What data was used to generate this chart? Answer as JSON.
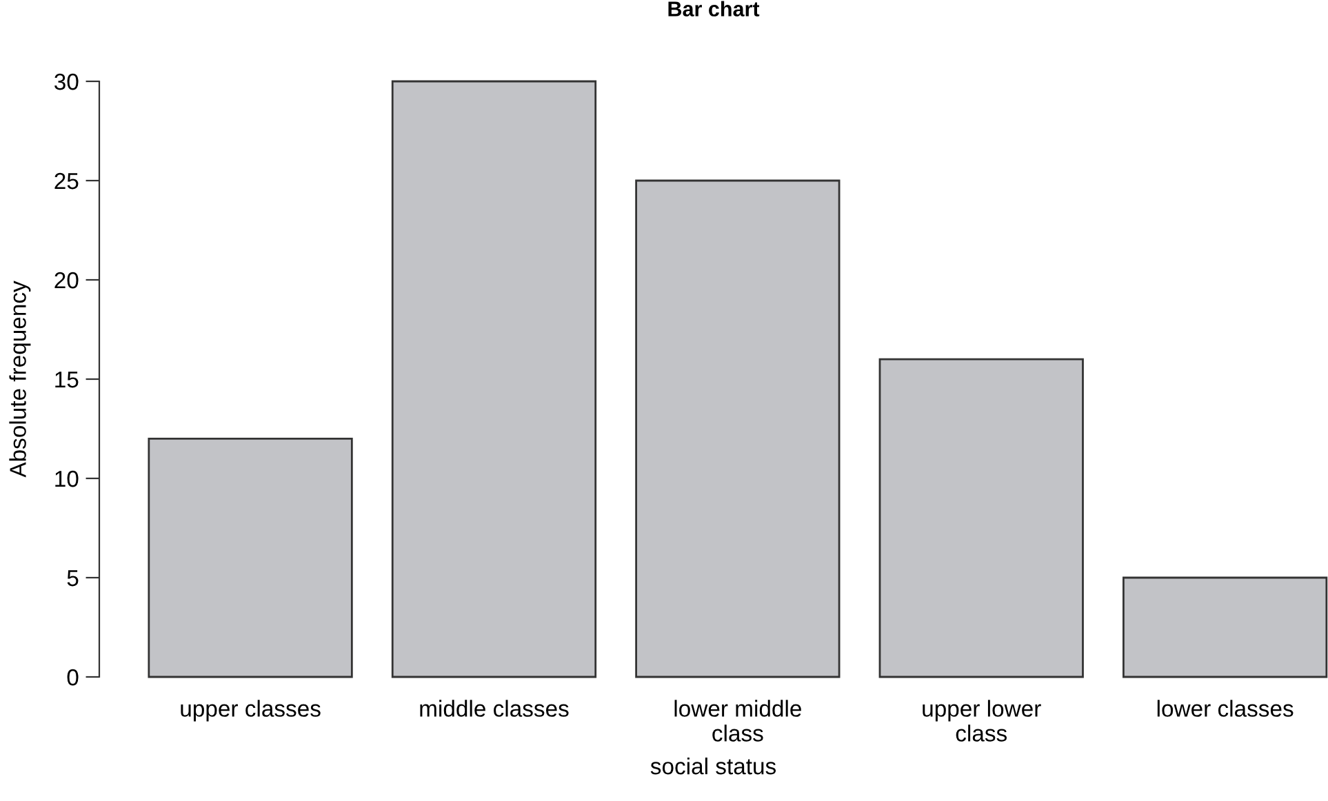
{
  "chart_data": {
    "type": "bar",
    "title": "Bar chart",
    "xlabel": "social status",
    "ylabel": "Absolute frequency",
    "categories": [
      "upper classes",
      "middle classes",
      "lower middle\nclass",
      "upper lower\nclass",
      "lower classes"
    ],
    "values": [
      12,
      30,
      25,
      16,
      5
    ],
    "color": "#c2c3c7",
    "ylim": [
      0,
      30
    ],
    "yticks": [
      0,
      5,
      10,
      15,
      20,
      25,
      30
    ],
    "grid": false
  }
}
